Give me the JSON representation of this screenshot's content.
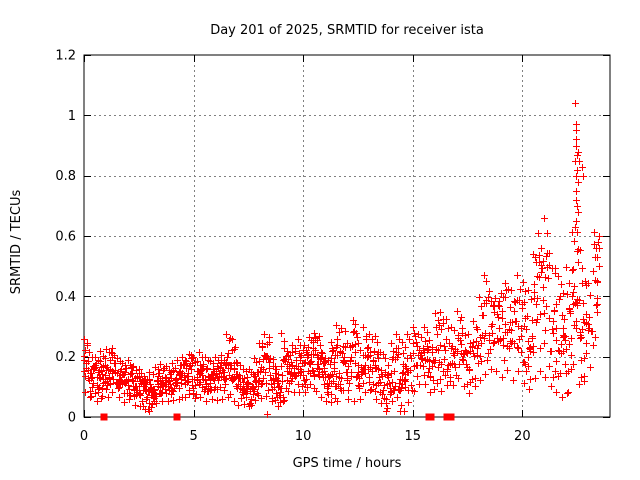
{
  "window": {
    "background": "#ffffff"
  },
  "chart_data": {
    "type": "scatter",
    "title": "Day 201 of 2025, SRMTID for receiver ista",
    "xlabel": "GPS time / hours",
    "ylabel": "SRMTID / TECUs",
    "xlim": [
      0,
      24
    ],
    "ylim": [
      0,
      1.2
    ],
    "xticks": [
      0,
      5,
      10,
      15,
      20
    ],
    "xtick_labels": [
      "0",
      "5",
      "10",
      "15",
      "20"
    ],
    "yticks": [
      0,
      0.2,
      0.4,
      0.6,
      0.8,
      1.0,
      1.2
    ],
    "ytick_labels": [
      "0",
      "0.2",
      "0.4",
      "0.6",
      "0.8",
      "1",
      "1.2"
    ],
    "grid": true,
    "grid_color": "#808080",
    "marker": "plus",
    "marker_color": "#ff0000",
    "series_name": "SRMTID",
    "envelope_bins_note": "each bin = [start_hour, y_min, y_max, n_points], bin width 0.25 h, summarizing the dense 30-s sample cloud read from the plot",
    "envelope_bins": [
      [
        0.0,
        0.08,
        0.26,
        14
      ],
      [
        0.25,
        0.06,
        0.22,
        16
      ],
      [
        0.5,
        0.05,
        0.2,
        16
      ],
      [
        0.75,
        0.06,
        0.22,
        16
      ],
      [
        1.0,
        0.06,
        0.23,
        16
      ],
      [
        1.25,
        0.08,
        0.23,
        16
      ],
      [
        1.5,
        0.06,
        0.2,
        16
      ],
      [
        1.75,
        0.05,
        0.18,
        16
      ],
      [
        2.0,
        0.05,
        0.19,
        16
      ],
      [
        2.25,
        0.04,
        0.17,
        16
      ],
      [
        2.5,
        0.03,
        0.16,
        18
      ],
      [
        2.75,
        0.02,
        0.14,
        18
      ],
      [
        3.0,
        0.03,
        0.15,
        18
      ],
      [
        3.25,
        0.04,
        0.17,
        16
      ],
      [
        3.5,
        0.05,
        0.18,
        16
      ],
      [
        3.75,
        0.05,
        0.17,
        16
      ],
      [
        4.0,
        0.05,
        0.18,
        16
      ],
      [
        4.25,
        0.06,
        0.19,
        16
      ],
      [
        4.5,
        0.06,
        0.2,
        16
      ],
      [
        4.75,
        0.07,
        0.21,
        16
      ],
      [
        5.0,
        0.06,
        0.2,
        16
      ],
      [
        5.25,
        0.06,
        0.22,
        16
      ],
      [
        5.5,
        0.05,
        0.2,
        16
      ],
      [
        5.75,
        0.06,
        0.19,
        16
      ],
      [
        6.0,
        0.05,
        0.2,
        16
      ],
      [
        6.25,
        0.06,
        0.21,
        16
      ],
      [
        6.5,
        0.06,
        0.28,
        16
      ],
      [
        6.75,
        0.05,
        0.26,
        16
      ],
      [
        7.0,
        0.04,
        0.18,
        16
      ],
      [
        7.25,
        0.04,
        0.16,
        16
      ],
      [
        7.5,
        0.03,
        0.16,
        16
      ],
      [
        7.75,
        0.05,
        0.2,
        16
      ],
      [
        8.0,
        0.06,
        0.25,
        16
      ],
      [
        8.25,
        0.07,
        0.28,
        16
      ],
      [
        8.5,
        0.05,
        0.2,
        16
      ],
      [
        8.75,
        0.03,
        0.16,
        16
      ],
      [
        9.0,
        0.05,
        0.28,
        16
      ],
      [
        9.25,
        0.08,
        0.22,
        16
      ],
      [
        9.5,
        0.08,
        0.24,
        16
      ],
      [
        9.75,
        0.08,
        0.26,
        16
      ],
      [
        10.0,
        0.08,
        0.24,
        16
      ],
      [
        10.25,
        0.1,
        0.27,
        16
      ],
      [
        10.5,
        0.08,
        0.28,
        16
      ],
      [
        10.75,
        0.06,
        0.24,
        16
      ],
      [
        11.0,
        0.05,
        0.2,
        16
      ],
      [
        11.25,
        0.04,
        0.25,
        16
      ],
      [
        11.5,
        0.05,
        0.31,
        16
      ],
      [
        11.75,
        0.08,
        0.3,
        14
      ],
      [
        12.0,
        0.05,
        0.25,
        14
      ],
      [
        12.25,
        0.04,
        0.33,
        16
      ],
      [
        12.5,
        0.06,
        0.25,
        14
      ],
      [
        12.75,
        0.08,
        0.3,
        14
      ],
      [
        13.0,
        0.08,
        0.28,
        14
      ],
      [
        13.25,
        0.06,
        0.27,
        14
      ],
      [
        13.5,
        0.04,
        0.22,
        14
      ],
      [
        13.75,
        0.02,
        0.2,
        14
      ],
      [
        14.0,
        0.05,
        0.25,
        14
      ],
      [
        14.25,
        0.06,
        0.28,
        14
      ],
      [
        14.5,
        0.01,
        0.25,
        16
      ],
      [
        14.75,
        0.04,
        0.28,
        12
      ],
      [
        15.0,
        0.08,
        0.3,
        12
      ],
      [
        15.25,
        0.1,
        0.28,
        12
      ],
      [
        15.5,
        0.1,
        0.3,
        12
      ],
      [
        15.75,
        0.08,
        0.26,
        12
      ],
      [
        16.0,
        0.1,
        0.35,
        12
      ],
      [
        16.25,
        0.08,
        0.35,
        12
      ],
      [
        16.5,
        0.1,
        0.33,
        12
      ],
      [
        16.75,
        0.1,
        0.3,
        12
      ],
      [
        17.0,
        0.12,
        0.35,
        12
      ],
      [
        17.25,
        0.1,
        0.3,
        12
      ],
      [
        17.5,
        0.08,
        0.28,
        12
      ],
      [
        17.75,
        0.1,
        0.32,
        12
      ],
      [
        18.0,
        0.12,
        0.4,
        12
      ],
      [
        18.25,
        0.12,
        0.48,
        12
      ],
      [
        18.5,
        0.15,
        0.42,
        12
      ],
      [
        18.75,
        0.15,
        0.4,
        12
      ],
      [
        19.0,
        0.12,
        0.42,
        12
      ],
      [
        19.25,
        0.15,
        0.45,
        12
      ],
      [
        19.5,
        0.12,
        0.42,
        12
      ],
      [
        19.75,
        0.15,
        0.48,
        12
      ],
      [
        20.0,
        0.1,
        0.45,
        14
      ],
      [
        20.25,
        0.08,
        0.42,
        14
      ],
      [
        20.5,
        0.12,
        0.55,
        14
      ],
      [
        20.75,
        0.15,
        0.62,
        14
      ],
      [
        21.0,
        0.12,
        0.67,
        14
      ],
      [
        21.25,
        0.1,
        0.55,
        12
      ],
      [
        21.5,
        0.08,
        0.5,
        14
      ],
      [
        21.75,
        0.06,
        0.45,
        16
      ],
      [
        22.0,
        0.06,
        0.5,
        16
      ],
      [
        22.25,
        0.15,
        0.62,
        16
      ],
      [
        22.5,
        0.1,
        0.62,
        16
      ],
      [
        22.75,
        0.1,
        0.5,
        14
      ],
      [
        23.0,
        0.15,
        0.45,
        10
      ],
      [
        23.25,
        0.25,
        0.62,
        12
      ]
    ],
    "outlier_points": [
      [
        22.42,
        1.04
      ],
      [
        22.45,
        0.97
      ],
      [
        22.43,
        0.95
      ],
      [
        22.47,
        0.92
      ],
      [
        22.44,
        0.9
      ],
      [
        22.5,
        0.87
      ],
      [
        22.42,
        0.85
      ],
      [
        22.55,
        0.88
      ],
      [
        22.6,
        0.85
      ],
      [
        22.48,
        0.82
      ],
      [
        22.45,
        0.8
      ],
      [
        22.52,
        0.78
      ],
      [
        22.46,
        0.75
      ],
      [
        22.43,
        0.72
      ],
      [
        22.49,
        0.7
      ],
      [
        22.55,
        0.68
      ],
      [
        22.44,
        0.65
      ],
      [
        22.4,
        0.63
      ],
      [
        22.7,
        0.83
      ],
      [
        22.75,
        0.8
      ],
      [
        23.45,
        0.58
      ],
      [
        23.5,
        0.56
      ],
      [
        23.42,
        0.53
      ],
      [
        23.48,
        0.5
      ],
      [
        23.4,
        0.45
      ],
      [
        23.52,
        0.6
      ],
      [
        8.35,
        0.01
      ],
      [
        14.42,
        0.02
      ],
      [
        14.45,
        0.04
      ],
      [
        2.95,
        0.02
      ],
      [
        13.8,
        0.02
      ]
    ],
    "baseline_square_markers_x": [
      0.91,
      4.25,
      15.75,
      15.85,
      16.55,
      16.75
    ],
    "legend_position": "none"
  }
}
